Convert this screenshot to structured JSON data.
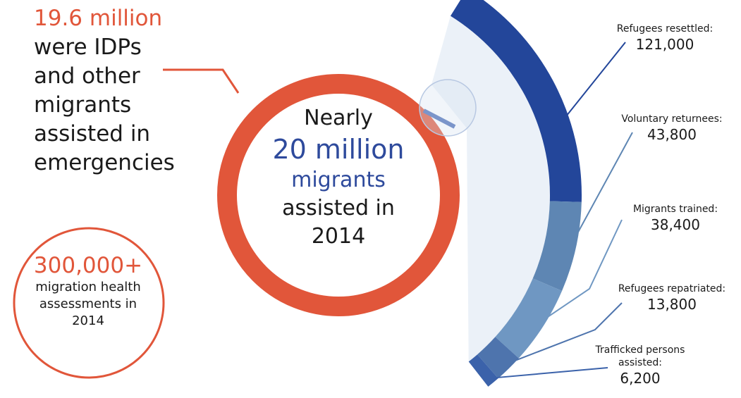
{
  "emergency": {
    "value": "19.6 million",
    "lines": [
      "were IDPs",
      "and other",
      "migrants",
      "assisted in",
      "emergencies"
    ]
  },
  "health": {
    "value": "300,000+",
    "lines": [
      "migration health",
      "assessments in",
      "2014"
    ]
  },
  "center": {
    "line1": "Nearly",
    "value": "20 million",
    "line3": "migrants",
    "line4": "assisted in",
    "line5": "2014"
  },
  "colors": {
    "emergency": "#e1563a",
    "resettled": "#23469a",
    "returnees": "#5e86b3",
    "trained": "#6f97c2",
    "repatriated": "#4e74ad",
    "trafficked": "#3b62aa",
    "highlight": "#2e4a9c"
  },
  "chart_data": {
    "type": "pie",
    "categories": [
      "Refugees resettled",
      "Voluntary returnees",
      "Migrants trained",
      "Refugees repatriated",
      "Trafficked persons assisted"
    ],
    "values": [
      121000,
      43800,
      38400,
      13800,
      6200
    ],
    "labels": [
      {
        "name": "Refugees resettled:",
        "value": "121,000"
      },
      {
        "name": "Voluntary returnees:",
        "value": "43,800"
      },
      {
        "name": "Migrants trained:",
        "value": "38,400"
      },
      {
        "name": "Refugees repatriated:",
        "value": "13,800"
      },
      {
        "name": "Trafficked persons assisted:",
        "value": "6,200"
      }
    ]
  }
}
